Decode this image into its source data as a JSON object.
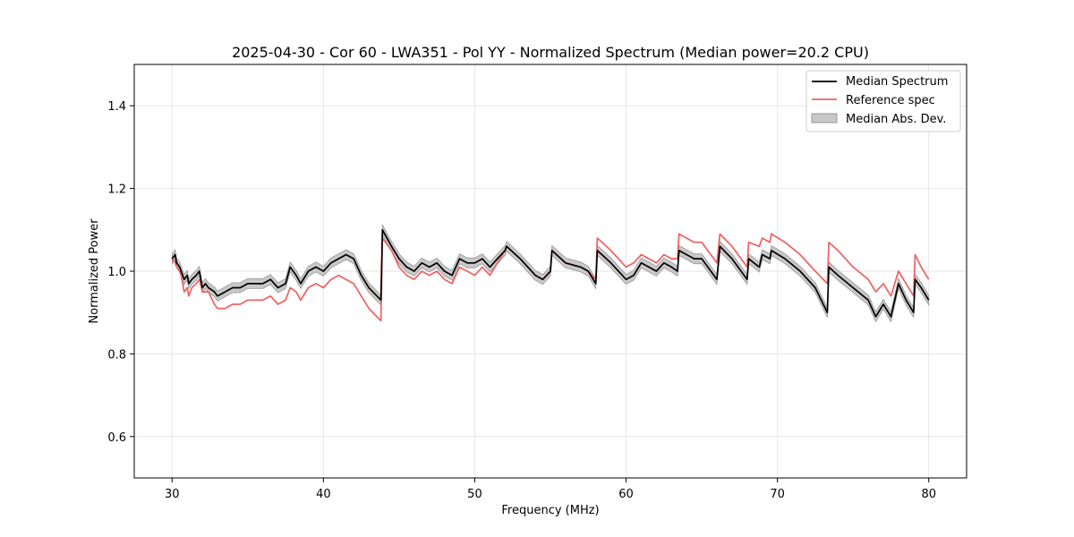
{
  "chart_data": {
    "type": "line",
    "title": "2025-04-30 - Cor 60 - LWA351 - Pol YY - Normalized Spectrum (Median power=20.2 CPU)",
    "xlabel": "Frequency (MHz)",
    "ylabel": "Normalized Power",
    "xlim": [
      27.5,
      82.5
    ],
    "ylim": [
      0.5,
      1.5
    ],
    "xticks": [
      30,
      40,
      50,
      60,
      70,
      80
    ],
    "yticks": [
      0.6,
      0.8,
      1.0,
      1.2,
      1.4
    ],
    "xtick_labels": [
      "30",
      "40",
      "50",
      "60",
      "70",
      "80"
    ],
    "ytick_labels": [
      "0.6",
      "0.8",
      "1.0",
      "1.2",
      "1.4"
    ],
    "grid": true,
    "legend_position": "top-right",
    "colors": {
      "median": "#000000",
      "reference": "#f06060",
      "mad_fill": "#c8c8c8",
      "mad_edge": "#9a9a9a"
    },
    "series": [
      {
        "name": "Median Spectrum",
        "x": [
          30.0,
          30.2,
          30.3,
          30.5,
          30.6,
          30.8,
          31.0,
          31.1,
          31.3,
          31.6,
          31.8,
          32.0,
          32.2,
          32.4,
          32.8,
          33.0,
          33.5,
          34.0,
          34.5,
          35.0,
          35.5,
          36.0,
          36.5,
          37.0,
          37.5,
          37.8,
          38.2,
          38.5,
          39.0,
          39.5,
          40.0,
          40.5,
          41.0,
          41.5,
          42.0,
          42.5,
          43.0,
          43.8,
          43.9,
          44.5,
          45.0,
          45.5,
          46.0,
          46.5,
          47.0,
          47.5,
          48.0,
          48.5,
          49.0,
          49.5,
          50.0,
          50.5,
          51.0,
          51.5,
          52.0,
          52.1,
          53.0,
          54.0,
          54.5,
          55.0,
          55.1,
          56.0,
          57.0,
          57.5,
          58.0,
          58.1,
          59.0,
          60.0,
          60.5,
          61.0,
          62.0,
          62.5,
          63.0,
          63.4,
          63.5,
          64.5,
          65.0,
          66.0,
          66.2,
          67.0,
          68.0,
          68.1,
          68.8,
          69.0,
          69.5,
          69.6,
          70.5,
          71.5,
          72.5,
          73.3,
          73.4,
          74.0,
          75.0,
          76.0,
          76.5,
          77.0,
          77.5,
          78.0,
          78.5,
          79.0,
          79.1,
          79.5,
          80.0
        ],
        "values": [
          1.03,
          1.04,
          1.02,
          1.01,
          1.0,
          0.98,
          0.99,
          0.97,
          0.98,
          0.99,
          1.0,
          0.96,
          0.97,
          0.96,
          0.95,
          0.94,
          0.95,
          0.96,
          0.96,
          0.97,
          0.97,
          0.97,
          0.98,
          0.96,
          0.97,
          1.01,
          0.99,
          0.97,
          1.0,
          1.01,
          1.0,
          1.02,
          1.03,
          1.04,
          1.03,
          0.99,
          0.96,
          0.93,
          1.1,
          1.06,
          1.03,
          1.01,
          1.0,
          1.02,
          1.01,
          1.02,
          1.0,
          0.99,
          1.03,
          1.02,
          1.02,
          1.03,
          1.01,
          1.03,
          1.05,
          1.06,
          1.03,
          0.99,
          0.98,
          1.0,
          1.05,
          1.02,
          1.01,
          1.0,
          0.97,
          1.05,
          1.02,
          0.98,
          0.99,
          1.02,
          1.0,
          1.02,
          1.01,
          1.0,
          1.05,
          1.03,
          1.03,
          0.98,
          1.06,
          1.03,
          0.98,
          1.03,
          1.01,
          1.04,
          1.03,
          1.05,
          1.03,
          1.0,
          0.96,
          0.9,
          1.01,
          0.99,
          0.96,
          0.93,
          0.89,
          0.92,
          0.89,
          0.97,
          0.93,
          0.9,
          0.98,
          0.96,
          0.93
        ]
      },
      {
        "name": "Reference spec",
        "x": [
          30.0,
          30.2,
          30.3,
          30.5,
          30.6,
          30.8,
          31.0,
          31.1,
          31.3,
          31.6,
          31.8,
          32.0,
          32.2,
          32.4,
          32.8,
          33.0,
          33.5,
          34.0,
          34.5,
          35.0,
          35.5,
          36.0,
          36.5,
          37.0,
          37.5,
          37.8,
          38.2,
          38.5,
          39.0,
          39.5,
          40.0,
          40.5,
          41.0,
          41.5,
          42.0,
          42.5,
          43.0,
          43.8,
          43.9,
          44.5,
          45.0,
          45.5,
          46.0,
          46.5,
          47.0,
          47.5,
          48.0,
          48.5,
          49.0,
          49.5,
          50.0,
          50.5,
          51.0,
          51.5,
          52.0,
          52.1,
          53.0,
          54.0,
          54.5,
          55.0,
          55.1,
          56.0,
          57.0,
          57.5,
          58.0,
          58.1,
          59.0,
          60.0,
          60.5,
          61.0,
          62.0,
          62.5,
          63.0,
          63.4,
          63.5,
          64.5,
          65.0,
          66.0,
          66.2,
          67.0,
          68.0,
          68.1,
          68.8,
          69.0,
          69.5,
          69.6,
          70.5,
          71.5,
          72.5,
          73.3,
          73.4,
          74.0,
          75.0,
          76.0,
          76.5,
          77.0,
          77.5,
          78.0,
          78.5,
          79.0,
          79.1,
          79.5,
          80.0
        ],
        "values": [
          1.03,
          1.02,
          1.01,
          1.0,
          0.99,
          0.95,
          0.96,
          0.94,
          0.96,
          0.97,
          0.98,
          0.95,
          0.95,
          0.95,
          0.92,
          0.91,
          0.91,
          0.92,
          0.92,
          0.93,
          0.93,
          0.93,
          0.94,
          0.92,
          0.93,
          0.96,
          0.95,
          0.93,
          0.96,
          0.97,
          0.96,
          0.98,
          0.99,
          0.98,
          0.97,
          0.94,
          0.91,
          0.88,
          1.08,
          1.05,
          1.01,
          0.99,
          0.98,
          1.0,
          0.99,
          1.0,
          0.98,
          0.97,
          1.01,
          1.0,
          0.99,
          1.01,
          0.99,
          1.02,
          1.05,
          1.06,
          1.03,
          0.99,
          0.98,
          1.0,
          1.05,
          1.02,
          1.01,
          1.0,
          0.98,
          1.08,
          1.05,
          1.01,
          1.02,
          1.04,
          1.02,
          1.04,
          1.03,
          1.03,
          1.09,
          1.07,
          1.07,
          1.02,
          1.09,
          1.06,
          1.01,
          1.07,
          1.06,
          1.08,
          1.07,
          1.09,
          1.07,
          1.04,
          1.0,
          0.97,
          1.07,
          1.05,
          1.01,
          0.98,
          0.95,
          0.97,
          0.94,
          1.0,
          0.97,
          0.94,
          1.04,
          1.01,
          0.98
        ]
      }
    ],
    "band": {
      "name": "Median Abs. Dev.",
      "of_series": "Median Spectrum",
      "half_width": 0.012
    }
  }
}
